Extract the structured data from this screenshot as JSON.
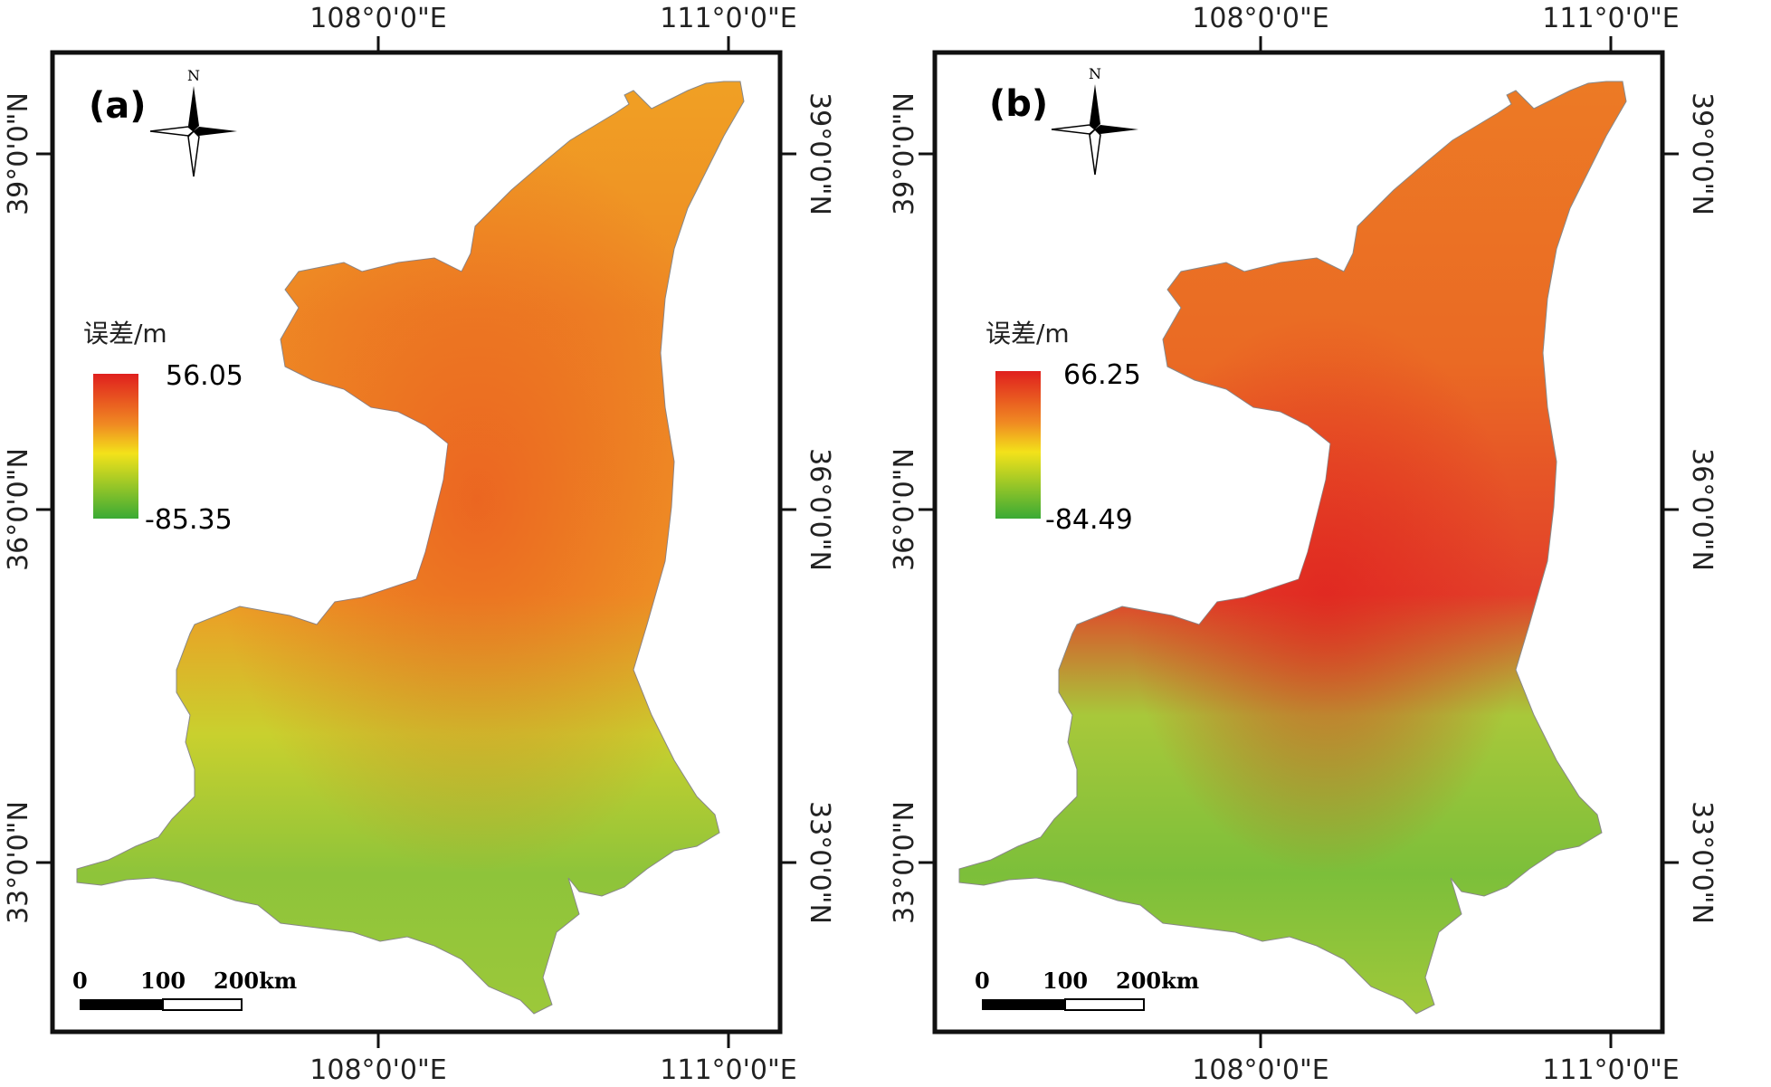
{
  "panels": [
    {
      "label": "(a)",
      "legend": {
        "title": "误差/m",
        "max": "56.05",
        "min": "-85.35"
      },
      "north": "N",
      "top_lon": [
        "108°0'0\"E",
        "111°0'0\"E"
      ],
      "bottom_lon": [
        "108°0'0\"E",
        "111°0'0\"E"
      ],
      "left_lat": [
        "39°0'0\"N",
        "36°0'0\"N",
        "33°0'0\"N"
      ],
      "right_lat": [
        "39°0'0\"N",
        "36°0'0\"N",
        "33°0'0\"N"
      ],
      "scale": {
        "labels": [
          "0",
          "100",
          "200km"
        ]
      }
    },
    {
      "label": "(b)",
      "legend": {
        "title": "误差/m",
        "max": "66.25",
        "min": "-84.49"
      },
      "north": "N",
      "top_lon": [
        "108°0'0\"E",
        "111°0'0\"E"
      ],
      "bottom_lon": [
        "108°0'0\"E",
        "111°0'0\"E"
      ],
      "left_lat": [
        "39°0'0\"N",
        "36°0'0\"N",
        "33°0'0\"N"
      ],
      "right_lat": [
        "39°0'0\"N",
        "36°0'0\"N",
        "33°0'0\"N"
      ],
      "scale": {
        "labels": [
          "0",
          "100",
          "200km"
        ]
      }
    }
  ],
  "colors": {
    "high": "#e0201e",
    "mid": "#f3e21a",
    "low": "#3aaa35",
    "frame": "#111111"
  }
}
